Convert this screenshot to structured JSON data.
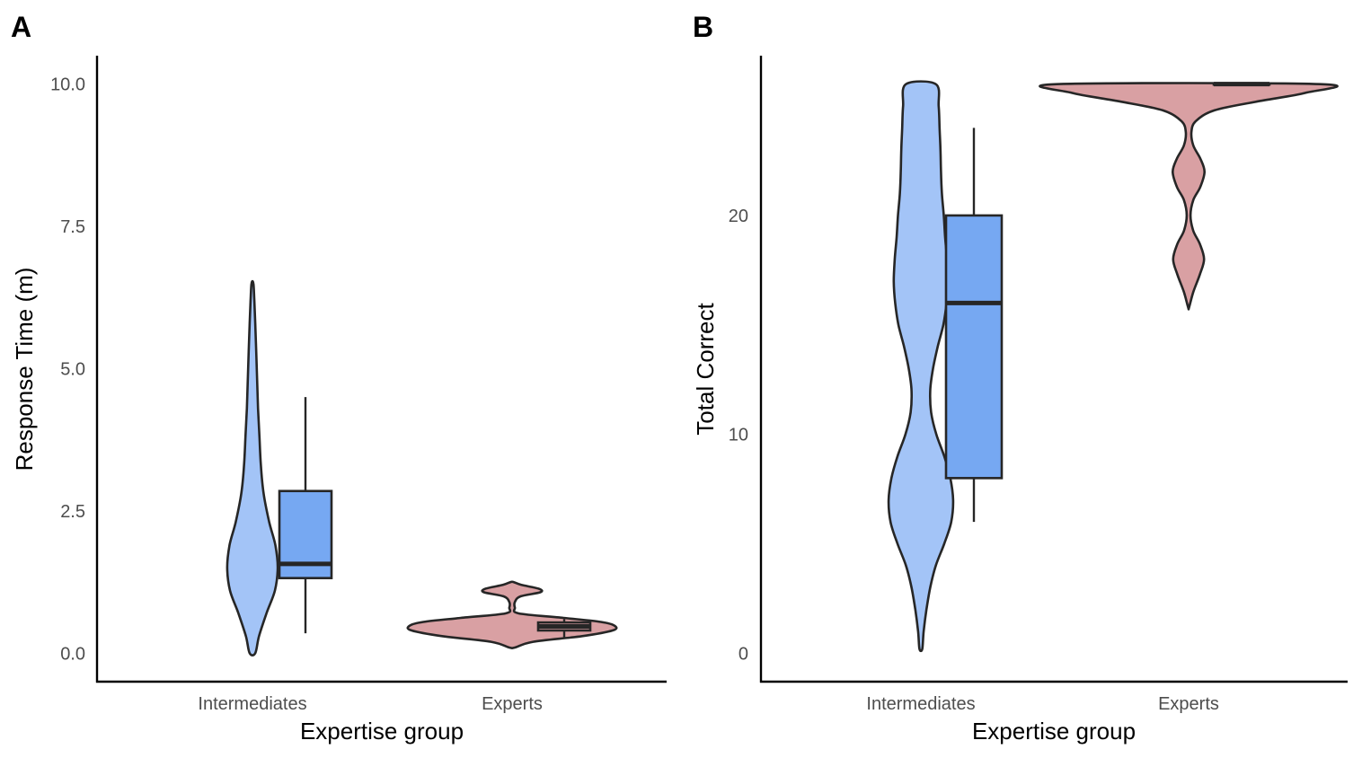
{
  "chart_data": [
    {
      "panel": "A",
      "type": "violin",
      "xlabel": "Expertise group",
      "ylabel": "Response Time (m)",
      "categories": [
        "Intermediates",
        "Experts"
      ],
      "ylim": [
        -0.5,
        10.5
      ],
      "yticks": [
        0,
        2.5,
        5,
        7.5,
        10
      ],
      "ytick_labels": [
        "0.0",
        "2.5",
        "5.0",
        "7.5",
        "10.0"
      ],
      "grid": false,
      "series": [
        {
          "category": "Intermediates",
          "color": "#a3c4f7",
          "box_color": "#76a8f2",
          "violin": {
            "y": [
              0.0,
              0.3,
              0.7,
              1.1,
              1.5,
              1.9,
              2.3,
              2.8,
              3.3,
              3.8,
              4.3,
              4.8,
              5.3,
              5.8,
              6.2,
              6.5
            ],
            "halfwidth": [
              0.06,
              0.14,
              0.3,
              0.48,
              0.54,
              0.49,
              0.36,
              0.24,
              0.18,
              0.15,
              0.12,
              0.1,
              0.08,
              0.06,
              0.04,
              0.02
            ]
          },
          "box": {
            "min": 0.35,
            "q1": 1.32,
            "median": 1.57,
            "q3": 2.85,
            "max": 4.5
          }
        },
        {
          "category": "Experts",
          "color": "#d9a0a3",
          "box_color": "#d9a0a3",
          "violin": {
            "y": [
              0.1,
              0.2,
              0.3,
              0.4,
              0.48,
              0.55,
              0.62,
              0.7,
              0.8,
              0.9,
              1.0,
              1.07,
              1.13,
              1.2,
              1.25
            ],
            "halfwidth": [
              0.06,
              0.45,
              1.5,
              2.15,
              2.2,
              1.9,
              1.1,
              0.14,
              0.06,
              0.06,
              0.18,
              0.6,
              0.58,
              0.2,
              0.03
            ]
          },
          "box": {
            "min": 0.25,
            "q1": 0.4,
            "median": 0.47,
            "q3": 0.54,
            "max": 0.6
          }
        }
      ]
    },
    {
      "panel": "B",
      "type": "violin",
      "xlabel": "Expertise group",
      "ylabel": "Total Correct",
      "categories": [
        "Intermediates",
        "Experts"
      ],
      "ylim": [
        -1.3,
        27.3
      ],
      "yticks": [
        0,
        10,
        20
      ],
      "ytick_labels": [
        "0",
        "10",
        "20"
      ],
      "grid": false,
      "series": [
        {
          "category": "Intermediates",
          "color": "#a3c4f7",
          "box_color": "#76a8f2",
          "violin": {
            "y": [
              0.2,
              1,
              2,
              3,
              4,
              5,
              6,
              7,
              8,
              9,
              10,
              11,
              12,
              13,
              14,
              15,
              16,
              17,
              18,
              19,
              20,
              21,
              22,
              23,
              24,
              25,
              26
            ],
            "halfwidth": [
              0.03,
              0.06,
              0.12,
              0.2,
              0.32,
              0.5,
              0.65,
              0.69,
              0.63,
              0.5,
              0.33,
              0.22,
              0.2,
              0.26,
              0.36,
              0.48,
              0.55,
              0.58,
              0.56,
              0.52,
              0.49,
              0.45,
              0.43,
              0.42,
              0.4,
              0.38,
              0.32
            ]
          },
          "box": {
            "min": 6,
            "q1": 8,
            "median": 16,
            "q3": 20,
            "max": 24
          }
        },
        {
          "category": "Experts",
          "color": "#d9a0a3",
          "box_color": "#d9a0a3",
          "violin": {
            "y": [
              15.8,
              16.5,
              17.3,
              18.0,
              18.7,
              19.3,
              20.0,
              20.7,
              21.3,
              22.0,
              22.6,
              23.2,
              23.8,
              24.3,
              24.8,
              25.2,
              25.6,
              26.0
            ],
            "halfwidth": [
              0.01,
              0.1,
              0.24,
              0.33,
              0.24,
              0.1,
              0.04,
              0.1,
              0.25,
              0.34,
              0.25,
              0.1,
              0.06,
              0.15,
              0.55,
              1.45,
              2.5,
              2.82
            ]
          },
          "box": {
            "min": 26,
            "q1": 26,
            "median": 26,
            "q3": 26,
            "max": 26
          }
        }
      ]
    }
  ]
}
